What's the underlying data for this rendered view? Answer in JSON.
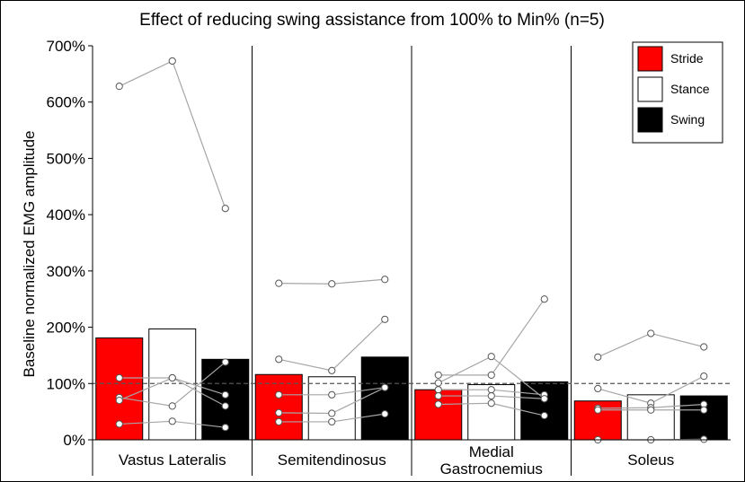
{
  "chart_data": {
    "type": "bar",
    "title": "Effect of reducing swing assistance from 100% to Min% (n=5)",
    "ylabel": "Baseline normalized EMG amplitude",
    "xlabel": "",
    "ylim": [
      0,
      700
    ],
    "yticks": [
      0,
      100,
      200,
      300,
      400,
      500,
      600,
      700
    ],
    "ytick_labels": [
      "0%",
      "100%",
      "200%",
      "300%",
      "400%",
      "500%",
      "600%",
      "700%"
    ],
    "reference_line": 100,
    "categories": [
      [
        "Vastus Lateralis"
      ],
      [
        "Semitendinosus"
      ],
      [
        "Medial",
        "Gastrocnemius"
      ],
      [
        "Soleus"
      ]
    ],
    "series": [
      {
        "name": "Stride",
        "color": "#ff0000",
        "values": [
          181,
          116,
          89,
          69
        ]
      },
      {
        "name": "Stance",
        "color": "#ffffff",
        "values": [
          197,
          112,
          98,
          80
        ]
      },
      {
        "name": "Swing",
        "color": "#000000",
        "values": [
          143,
          147,
          103,
          78
        ]
      }
    ],
    "subjects": [
      [
        [
          628,
          673,
          411
        ],
        [
          110,
          110,
          80
        ],
        [
          75,
          60,
          138
        ],
        [
          70,
          110,
          60
        ],
        [
          28,
          33,
          22
        ]
      ],
      [
        [
          278,
          277,
          285
        ],
        [
          143,
          123,
          214
        ],
        [
          80,
          80,
          93
        ],
        [
          48,
          47,
          93
        ],
        [
          32,
          32,
          46
        ]
      ],
      [
        [
          115,
          115,
          250
        ],
        [
          101,
          148,
          73
        ],
        [
          89,
          89,
          80
        ],
        [
          78,
          78,
          73
        ],
        [
          63,
          65,
          43
        ]
      ],
      [
        [
          147,
          189,
          165
        ],
        [
          91,
          65,
          113
        ],
        [
          56,
          57,
          63
        ],
        [
          53,
          53,
          53
        ],
        [
          0,
          0,
          1
        ]
      ]
    ],
    "legend": {
      "position": "top-right",
      "entries": [
        "Stride",
        "Stance",
        "Swing"
      ]
    }
  }
}
